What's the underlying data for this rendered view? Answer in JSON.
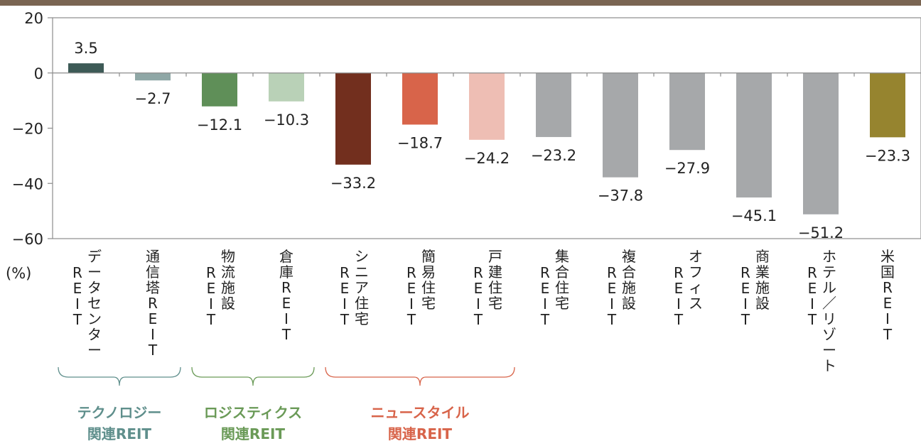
{
  "chart_data": {
    "type": "bar",
    "unit_label": "(%)",
    "ylim": [
      -60,
      20
    ],
    "yticks": [
      20,
      0,
      -20,
      -40,
      -60
    ],
    "ytick_labels": [
      "20",
      "0",
      "−20",
      "−40",
      "−60"
    ],
    "categories": [
      [
        "データセンター",
        "REIT"
      ],
      [
        "通信塔REIT"
      ],
      [
        "物流施設",
        "REIT"
      ],
      [
        "倉庫REIT"
      ],
      [
        "シニア住宅",
        "REIT"
      ],
      [
        "簡易住宅",
        "REIT"
      ],
      [
        "戸建住宅",
        "REIT"
      ],
      [
        "集合住宅",
        "REIT"
      ],
      [
        "複合施設",
        "REIT"
      ],
      [
        "オフィス",
        "REIT"
      ],
      [
        "商業施設",
        "REIT"
      ],
      [
        "ホテル／リゾート",
        "REIT"
      ],
      [
        "米国REIT"
      ]
    ],
    "values": [
      3.5,
      -2.7,
      -12.1,
      -10.3,
      -33.2,
      -18.7,
      -24.2,
      -23.2,
      -37.8,
      -27.9,
      -45.1,
      -51.2,
      -23.3
    ],
    "value_labels": [
      "3.5",
      "−2.7",
      "−12.1",
      "−10.3",
      "−33.2",
      "−18.7",
      "−24.2",
      "−23.2",
      "−37.8",
      "−27.9",
      "−45.1",
      "−51.2",
      "−23.3"
    ],
    "colors": [
      "#3d5a56",
      "#8fa7a6",
      "#5f8f58",
      "#b9d1b7",
      "#722f1e",
      "#d8644a",
      "#eebeb4",
      "#a6a8aa",
      "#a6a8aa",
      "#a6a8aa",
      "#a6a8aa",
      "#a6a8aa",
      "#96842f"
    ],
    "groups": [
      {
        "lines": [
          "テクノロジー",
          "関連REIT"
        ],
        "from": 0,
        "to": 1,
        "color": "#5f8f8c"
      },
      {
        "lines": [
          "ロジスティクス",
          "関連REIT"
        ],
        "from": 2,
        "to": 3,
        "color": "#6a9a57"
      },
      {
        "lines": [
          "ニュースタイル",
          "関連REIT"
        ],
        "from": 4,
        "to": 6,
        "color": "#d8644a"
      }
    ]
  }
}
